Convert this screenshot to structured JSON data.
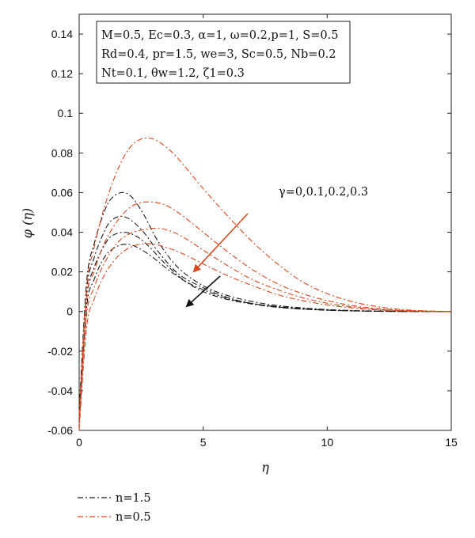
{
  "chart_data": {
    "type": "line",
    "xlabel": "η",
    "ylabel": "φ (η)",
    "xlim": [
      0,
      15
    ],
    "ylim": [
      -0.06,
      0.15
    ],
    "xticks": [
      "0",
      "5",
      "10",
      "15"
    ],
    "xtick_values": [
      0,
      5,
      10,
      15
    ],
    "yticks": [
      "-0.06",
      "-0.04",
      "-0.02",
      "0",
      "0.02",
      "0.04",
      "0.06",
      "0.08",
      "0.1",
      "0.12",
      "0.14"
    ],
    "ytick_values": [
      -0.06,
      -0.04,
      -0.02,
      0,
      0.02,
      0.04,
      0.06,
      0.08,
      0.1,
      0.12,
      0.14
    ],
    "grid": false,
    "info_box": [
      "M=0.5, Ec=0.3, α=1, ω=0.2,p=1, S=0.5",
      "Rd=0.4, pr=1.5, we=3, Sc=0.5, Nb=0.2",
      "Nt=0.1, θw=1.2, ζ1=0.3"
    ],
    "annotation": "γ=0,0.1,0.2,0.3",
    "colors": {
      "n15": "#1a1a1a",
      "n05": "#d9471f"
    },
    "series": [
      {
        "name": "n=1.5",
        "group": "n15",
        "gamma": "0",
        "values": [
          [
            0,
            -0.05
          ],
          [
            0.3,
            0.015
          ],
          [
            0.6,
            0.034
          ],
          [
            1.0,
            0.05
          ],
          [
            1.3,
            0.057
          ],
          [
            1.7,
            0.06
          ],
          [
            2.1,
            0.058
          ],
          [
            2.6,
            0.049
          ],
          [
            3.2,
            0.035
          ],
          [
            4.0,
            0.022
          ],
          [
            5.0,
            0.013
          ],
          [
            6.0,
            0.008
          ],
          [
            7.0,
            0.005
          ],
          [
            8.0,
            0.003
          ],
          [
            9.0,
            0.0018
          ],
          [
            10.0,
            0.001
          ],
          [
            11.0,
            0.0005
          ],
          [
            12.0,
            0.0002
          ],
          [
            13.0,
            0.0001
          ],
          [
            14.0,
            0.0
          ],
          [
            15.0,
            0.0
          ]
        ]
      },
      {
        "name": "n=1.5",
        "group": "n15",
        "gamma": "0.1",
        "values": [
          [
            0,
            -0.052
          ],
          [
            0.3,
            0.01
          ],
          [
            0.6,
            0.027
          ],
          [
            1.0,
            0.04
          ],
          [
            1.3,
            0.046
          ],
          [
            1.7,
            0.048
          ],
          [
            2.1,
            0.046
          ],
          [
            2.6,
            0.04
          ],
          [
            3.2,
            0.03
          ],
          [
            4.0,
            0.019
          ],
          [
            5.0,
            0.012
          ],
          [
            6.0,
            0.007
          ],
          [
            7.0,
            0.004
          ],
          [
            8.0,
            0.0025
          ],
          [
            9.0,
            0.0015
          ],
          [
            10.0,
            0.0008
          ],
          [
            11.0,
            0.0004
          ],
          [
            12.0,
            0.0002
          ],
          [
            13.0,
            0.0001
          ],
          [
            14.0,
            0.0
          ],
          [
            15.0,
            0.0
          ]
        ]
      },
      {
        "name": "n=1.5",
        "group": "n15",
        "gamma": "0.2",
        "values": [
          [
            0,
            -0.054
          ],
          [
            0.3,
            0.006
          ],
          [
            0.6,
            0.022
          ],
          [
            1.0,
            0.033
          ],
          [
            1.3,
            0.038
          ],
          [
            1.8,
            0.04
          ],
          [
            2.3,
            0.038
          ],
          [
            2.8,
            0.033
          ],
          [
            3.4,
            0.025
          ],
          [
            4.2,
            0.016
          ],
          [
            5.0,
            0.011
          ],
          [
            6.0,
            0.0065
          ],
          [
            7.0,
            0.004
          ],
          [
            8.0,
            0.0023
          ],
          [
            9.0,
            0.0013
          ],
          [
            10.0,
            0.0007
          ],
          [
            11.0,
            0.0003
          ],
          [
            12.0,
            0.0001
          ],
          [
            13.0,
            0.0
          ],
          [
            14.0,
            0.0
          ],
          [
            15.0,
            0.0
          ]
        ]
      },
      {
        "name": "n=1.5",
        "group": "n15",
        "gamma": "0.3",
        "values": [
          [
            0,
            -0.056
          ],
          [
            0.3,
            0.002
          ],
          [
            0.6,
            0.016
          ],
          [
            1.0,
            0.027
          ],
          [
            1.4,
            0.032
          ],
          [
            1.9,
            0.034
          ],
          [
            2.4,
            0.032
          ],
          [
            3.0,
            0.027
          ],
          [
            3.6,
            0.021
          ],
          [
            4.3,
            0.015
          ],
          [
            5.0,
            0.01
          ],
          [
            6.0,
            0.006
          ],
          [
            7.0,
            0.0037
          ],
          [
            8.0,
            0.0021
          ],
          [
            9.0,
            0.0012
          ],
          [
            10.0,
            0.0006
          ],
          [
            11.0,
            0.0003
          ],
          [
            12.0,
            0.0001
          ],
          [
            13.0,
            0.0
          ],
          [
            14.0,
            0.0
          ],
          [
            15.0,
            0.0
          ]
        ]
      },
      {
        "name": "n=0.5",
        "group": "n05",
        "gamma": "0",
        "values": [
          [
            0,
            -0.052
          ],
          [
            0.3,
            0.012
          ],
          [
            0.6,
            0.032
          ],
          [
            1.0,
            0.052
          ],
          [
            1.5,
            0.07
          ],
          [
            2.0,
            0.082
          ],
          [
            2.5,
            0.087
          ],
          [
            3.0,
            0.087
          ],
          [
            3.5,
            0.083
          ],
          [
            4.0,
            0.077
          ],
          [
            5.0,
            0.062
          ],
          [
            6.0,
            0.048
          ],
          [
            7.0,
            0.035
          ],
          [
            8.0,
            0.024
          ],
          [
            9.0,
            0.015
          ],
          [
            10.0,
            0.009
          ],
          [
            11.0,
            0.005
          ],
          [
            12.0,
            0.0025
          ],
          [
            13.0,
            0.001
          ],
          [
            14.0,
            0.0003
          ],
          [
            15.0,
            0.0
          ]
        ]
      },
      {
        "name": "n=0.5",
        "group": "n05",
        "gamma": "0.1",
        "values": [
          [
            0,
            -0.054
          ],
          [
            0.3,
            0.006
          ],
          [
            0.6,
            0.02
          ],
          [
            1.0,
            0.034
          ],
          [
            1.5,
            0.045
          ],
          [
            2.0,
            0.052
          ],
          [
            2.5,
            0.055
          ],
          [
            3.1,
            0.055
          ],
          [
            3.6,
            0.053
          ],
          [
            4.2,
            0.048
          ],
          [
            5.0,
            0.04
          ],
          [
            6.0,
            0.03
          ],
          [
            7.0,
            0.021
          ],
          [
            8.0,
            0.014
          ],
          [
            9.0,
            0.009
          ],
          [
            10.0,
            0.0055
          ],
          [
            11.0,
            0.003
          ],
          [
            12.0,
            0.0015
          ],
          [
            13.0,
            0.0006
          ],
          [
            14.0,
            0.0002
          ],
          [
            15.0,
            0.0
          ]
        ]
      },
      {
        "name": "n=0.5",
        "group": "n05",
        "gamma": "0.2",
        "values": [
          [
            0,
            -0.057
          ],
          [
            0.3,
            -0.002
          ],
          [
            0.6,
            0.012
          ],
          [
            1.0,
            0.024
          ],
          [
            1.5,
            0.034
          ],
          [
            2.0,
            0.039
          ],
          [
            2.5,
            0.041
          ],
          [
            3.2,
            0.042
          ],
          [
            3.8,
            0.04
          ],
          [
            4.4,
            0.036
          ],
          [
            5.0,
            0.031
          ],
          [
            6.0,
            0.023
          ],
          [
            7.0,
            0.016
          ],
          [
            8.0,
            0.011
          ],
          [
            9.0,
            0.007
          ],
          [
            10.0,
            0.0042
          ],
          [
            11.0,
            0.0023
          ],
          [
            12.0,
            0.0011
          ],
          [
            13.0,
            0.0004
          ],
          [
            14.0,
            0.0001
          ],
          [
            15.0,
            0.0
          ]
        ]
      },
      {
        "name": "n=0.5",
        "group": "n05",
        "gamma": "0.3",
        "values": [
          [
            0,
            -0.06
          ],
          [
            0.3,
            -0.008
          ],
          [
            0.6,
            0.006
          ],
          [
            1.0,
            0.018
          ],
          [
            1.5,
            0.027
          ],
          [
            2.0,
            0.032
          ],
          [
            2.5,
            0.034
          ],
          [
            3.0,
            0.034
          ],
          [
            3.6,
            0.032
          ],
          [
            4.2,
            0.029
          ],
          [
            5.0,
            0.024
          ],
          [
            6.0,
            0.018
          ],
          [
            7.0,
            0.013
          ],
          [
            8.0,
            0.0085
          ],
          [
            9.0,
            0.0055
          ],
          [
            10.0,
            0.0033
          ],
          [
            11.0,
            0.0018
          ],
          [
            12.0,
            0.0008
          ],
          [
            13.0,
            0.0003
          ],
          [
            14.0,
            0.0001
          ],
          [
            15.0,
            0.0
          ]
        ]
      }
    ],
    "legend": [
      {
        "label": "n=1.5",
        "group": "n15"
      },
      {
        "label": "n=0.5",
        "group": "n05"
      }
    ],
    "legend_position": "bottom-left"
  }
}
